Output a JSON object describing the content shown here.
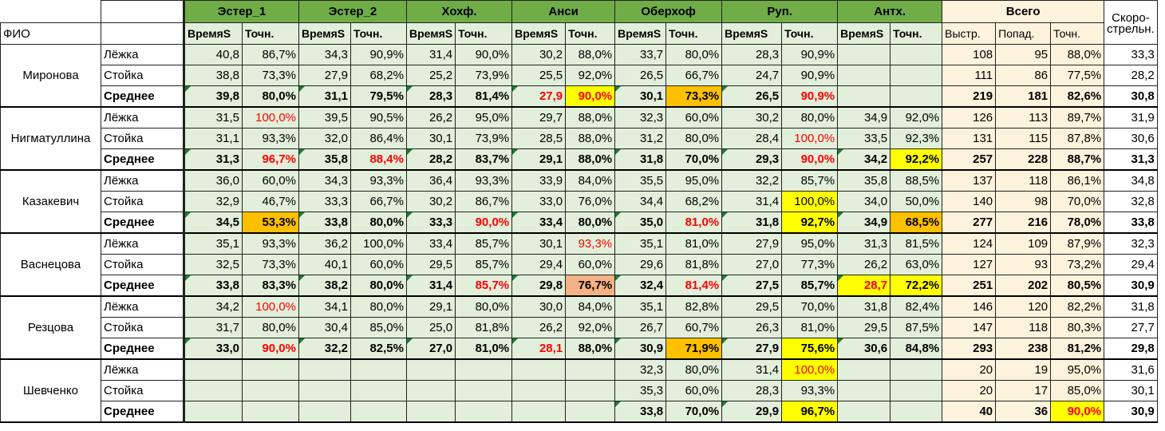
{
  "header": {
    "col_name": "ФИО",
    "sections": [
      "Эстер_1",
      "Эстер_2",
      "Хохф.",
      "Анси",
      "Оберхоф",
      "Руп.",
      "Антх."
    ],
    "section_sub": [
      "ВремяS",
      "Точн."
    ],
    "total": "Всего",
    "total_sub": [
      "Выстр.",
      "Попад.",
      "Точн."
    ],
    "rate_line1": "Скоро-",
    "rate_line2": "стрельн."
  },
  "row_labels": [
    "Лёжка",
    "Стойка",
    "Среднее"
  ],
  "athletes": [
    {
      "name": "Миронова",
      "rows": [
        {
          "vals": [
            "40,8",
            "86,7%",
            "34,3",
            "90,9%",
            "31,4",
            "90,0%",
            "30,2",
            "88,0%",
            "33,7",
            "80,0%",
            "28,3",
            "90,9%",
            "",
            ""
          ],
          "tot": [
            "108",
            "95",
            "88,0%"
          ],
          "rate": "33,3"
        },
        {
          "vals": [
            "38,8",
            "73,3%",
            "27,9",
            "68,2%",
            "25,2",
            "73,9%",
            "25,5",
            "92,0%",
            "26,5",
            "66,7%",
            "24,7",
            "90,9%",
            "",
            ""
          ],
          "tot": [
            "111",
            "86",
            "77,5%"
          ],
          "rate": "28,2"
        },
        {
          "vals": [
            "39,8",
            "80,0%",
            "31,1",
            "79,5%",
            "28,3",
            "81,4%",
            "27,9",
            "90,0%",
            "30,1",
            "73,3%",
            "26,5",
            "90,9%",
            "",
            ""
          ],
          "tot": [
            "219",
            "181",
            "82,6%"
          ],
          "rate": "30,8"
        }
      ]
    },
    {
      "name": "Нигматуллина",
      "rows": [
        {
          "vals": [
            "31,5",
            "100,0%",
            "39,5",
            "90,5%",
            "26,2",
            "95,0%",
            "29,7",
            "88,0%",
            "32,3",
            "60,0%",
            "30,2",
            "80,0%",
            "34,9",
            "92,0%"
          ],
          "tot": [
            "126",
            "113",
            "89,7%"
          ],
          "rate": "31,9"
        },
        {
          "vals": [
            "31,1",
            "93,3%",
            "32,0",
            "86,4%",
            "30,1",
            "73,9%",
            "28,5",
            "88,0%",
            "31,2",
            "80,0%",
            "28,4",
            "100,0%",
            "33,5",
            "92,3%"
          ],
          "tot": [
            "131",
            "115",
            "87,8%"
          ],
          "rate": "30,6"
        },
        {
          "vals": [
            "31,3",
            "96,7%",
            "35,8",
            "88,4%",
            "28,2",
            "83,7%",
            "29,1",
            "88,0%",
            "31,8",
            "70,0%",
            "29,3",
            "90,0%",
            "34,2",
            "92,2%"
          ],
          "tot": [
            "257",
            "228",
            "88,7%"
          ],
          "rate": "31,3"
        }
      ]
    },
    {
      "name": "Казакевич",
      "rows": [
        {
          "vals": [
            "36,0",
            "60,0%",
            "34,3",
            "93,3%",
            "36,4",
            "93,3%",
            "33,9",
            "84,0%",
            "35,5",
            "95,0%",
            "32,2",
            "85,7%",
            "35,8",
            "88,5%"
          ],
          "tot": [
            "137",
            "118",
            "86,1%"
          ],
          "rate": "34,8"
        },
        {
          "vals": [
            "32,9",
            "46,7%",
            "33,3",
            "66,7%",
            "30,2",
            "86,7%",
            "33,0",
            "76,0%",
            "34,4",
            "68,2%",
            "31,4",
            "100,0%",
            "34,0",
            "50,0%"
          ],
          "tot": [
            "140",
            "98",
            "70,0%"
          ],
          "rate": "32,8"
        },
        {
          "vals": [
            "34,5",
            "53,3%",
            "33,8",
            "80,0%",
            "33,3",
            "90,0%",
            "33,4",
            "80,0%",
            "35,0",
            "81,0%",
            "31,8",
            "92,7%",
            "34,9",
            "68,5%"
          ],
          "tot": [
            "277",
            "216",
            "78,0%"
          ],
          "rate": "33,8"
        }
      ]
    },
    {
      "name": "Васнецова",
      "rows": [
        {
          "vals": [
            "35,1",
            "93,3%",
            "36,2",
            "100,0%",
            "33,4",
            "85,7%",
            "30,1",
            "93,3%",
            "35,1",
            "81,0%",
            "27,9",
            "95,0%",
            "31,3",
            "81,5%"
          ],
          "tot": [
            "124",
            "109",
            "87,9%"
          ],
          "rate": "32,3"
        },
        {
          "vals": [
            "32,5",
            "73,3%",
            "40,1",
            "60,0%",
            "29,5",
            "85,7%",
            "29,4",
            "60,0%",
            "29,6",
            "81,8%",
            "27,0",
            "77,3%",
            "26,2",
            "63,0%"
          ],
          "tot": [
            "127",
            "93",
            "73,2%"
          ],
          "rate": "29,4"
        },
        {
          "vals": [
            "33,8",
            "83,3%",
            "38,2",
            "80,0%",
            "31,4",
            "85,7%",
            "29,8",
            "76,7%",
            "32,4",
            "81,4%",
            "27,5",
            "85,7%",
            "28,7",
            "72,2%"
          ],
          "tot": [
            "251",
            "202",
            "80,5%"
          ],
          "rate": "30,9"
        }
      ]
    },
    {
      "name": "Резцова",
      "rows": [
        {
          "vals": [
            "34,2",
            "100,0%",
            "34,1",
            "80,0%",
            "29,1",
            "80,0%",
            "30,0",
            "84,0%",
            "35,1",
            "82,8%",
            "29,5",
            "70,0%",
            "31,8",
            "82,4%"
          ],
          "tot": [
            "146",
            "120",
            "82,2%"
          ],
          "rate": "31,8"
        },
        {
          "vals": [
            "31,7",
            "80,0%",
            "30,4",
            "85,0%",
            "25,0",
            "81,8%",
            "26,2",
            "92,0%",
            "26,7",
            "60,7%",
            "26,3",
            "81,0%",
            "29,5",
            "87,5%"
          ],
          "tot": [
            "147",
            "118",
            "80,3%"
          ],
          "rate": "27,7"
        },
        {
          "vals": [
            "33,0",
            "90,0%",
            "32,2",
            "82,5%",
            "27,0",
            "81,0%",
            "28,1",
            "88,0%",
            "30,9",
            "71,9%",
            "27,9",
            "75,6%",
            "30,6",
            "84,8%"
          ],
          "tot": [
            "293",
            "238",
            "81,2%"
          ],
          "rate": "29,8"
        }
      ]
    },
    {
      "name": "Шевченко",
      "rows": [
        {
          "vals": [
            "",
            "",
            "",
            "",
            "",
            "",
            "",
            "",
            "32,3",
            "80,0%",
            "31,4",
            "100,0%",
            "",
            ""
          ],
          "tot": [
            "20",
            "19",
            "95,0%"
          ],
          "rate": "31,6"
        },
        {
          "vals": [
            "",
            "",
            "",
            "",
            "",
            "",
            "",
            "",
            "35,3",
            "60,0%",
            "28,3",
            "93,3%",
            "",
            ""
          ],
          "tot": [
            "20",
            "17",
            "85,0%"
          ],
          "rate": "30,1"
        },
        {
          "vals": [
            "",
            "",
            "",
            "",
            "",
            "",
            "",
            "",
            "33,8",
            "70,0%",
            "29,9",
            "96,7%",
            "",
            ""
          ],
          "tot": [
            "40",
            "36",
            "90,0%"
          ],
          "rate": "30,9"
        }
      ]
    }
  ],
  "styles": {
    "red": [
      "0-2-7",
      "0-2-6",
      "0-2-11",
      "1-0-1",
      "1-1-11",
      "1-2-1",
      "1-2-3",
      "1-2-11",
      "2-2-5",
      "2-2-9",
      "3-0-7",
      "3-2-5",
      "3-2-9",
      "3-2-12",
      "4-0-1",
      "4-2-1",
      "4-2-6",
      "5-0-11"
    ],
    "yellow": [
      "0-2-7",
      "1-2-13",
      "2-1-11",
      "2-2-11",
      "3-2-12",
      "3-2-13",
      "4-2-11",
      "5-0-11",
      "5-2-11"
    ],
    "orange": [
      "0-2-9",
      "2-2-1",
      "2-2-13",
      "4-2-9"
    ],
    "peach": [
      "3-2-7"
    ]
  },
  "colors": {
    "section_green": "#70ad47",
    "cell_green": "#e2efda",
    "total_tan": "#fcf3dc",
    "highlight_yellow": "#ffff00",
    "highlight_orange": "#ffc000",
    "highlight_peach": "#f4b183",
    "alert_red": "#ff0000"
  }
}
